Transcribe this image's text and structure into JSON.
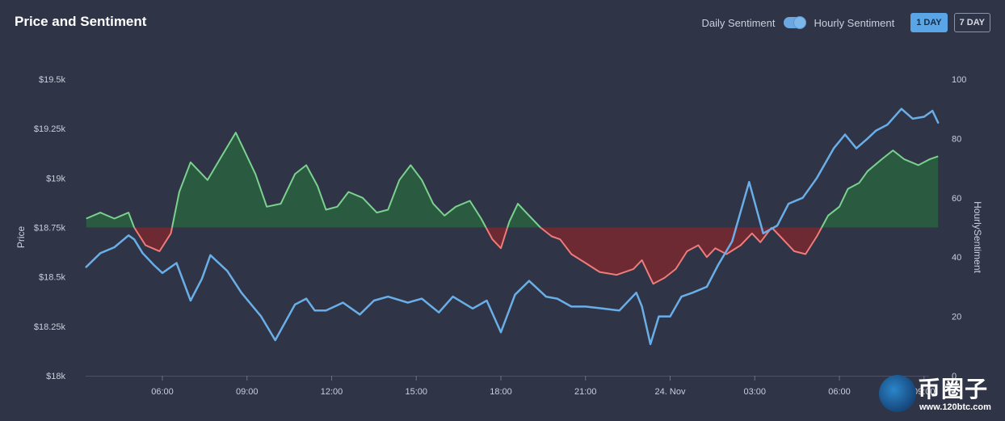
{
  "header": {
    "title": "Price and Sentiment",
    "toggle_left_label": "Daily Sentiment",
    "toggle_right_label": "Hourly Sentiment",
    "toggle_selected": "Hourly Sentiment",
    "range_buttons": [
      {
        "label": "1 DAY",
        "active": true
      },
      {
        "label": "7 DAY",
        "active": false
      }
    ]
  },
  "colors": {
    "background": "#2f3446",
    "price_line": "#6aaee8",
    "sentiment_positive_line": "#7bd28f",
    "sentiment_positive_fill": "#2a5a40",
    "sentiment_negative_line": "#f07b7b",
    "sentiment_negative_fill": "#6e2a33",
    "axis_text": "#c9cfdc"
  },
  "chart_data": {
    "type": "line",
    "title": "Price and Sentiment",
    "x_tick_labels": [
      "06:00",
      "09:00",
      "12:00",
      "15:00",
      "18:00",
      "21:00",
      "24. Nov",
      "03:00",
      "06:00",
      "09:00"
    ],
    "x_range_hours": [
      3.3,
      33.5
    ],
    "y_left": {
      "label": "Price",
      "ticks": [
        "$19.5k",
        "$19.25k",
        "$19k",
        "$18.75k",
        "$18.5k",
        "$18.25k",
        "$18k"
      ],
      "range": [
        18000,
        19500
      ]
    },
    "y_right": {
      "label": "HourlySentiment",
      "ticks": [
        "100",
        "80",
        "60",
        "40",
        "20",
        "0"
      ],
      "range": [
        0,
        100
      ],
      "baseline": 50
    },
    "series": [
      {
        "name": "Price",
        "axis": "left",
        "x": [
          3.3,
          3.8,
          4.3,
          4.8,
          5.0,
          5.3,
          5.7,
          6.0,
          6.5,
          7.0,
          7.4,
          7.7,
          8.3,
          8.8,
          9.5,
          10.0,
          10.7,
          11.1,
          11.4,
          11.8,
          12.4,
          13.0,
          13.5,
          14.0,
          14.7,
          15.2,
          15.8,
          16.3,
          17.0,
          17.5,
          18.0,
          18.5,
          19.0,
          19.6,
          20.0,
          20.5,
          21.0,
          21.6,
          22.2,
          22.8,
          23.0,
          23.3,
          23.6,
          24.0,
          24.4,
          24.8,
          25.3,
          25.7,
          26.2,
          26.8,
          27.3,
          27.8,
          28.2,
          28.7,
          29.2,
          29.8,
          30.2,
          30.6,
          31.0,
          31.3,
          31.7,
          32.2,
          32.6,
          33.0,
          33.3,
          33.5
        ],
        "y": [
          18550,
          18620,
          18650,
          18710,
          18690,
          18620,
          18560,
          18520,
          18570,
          18380,
          18490,
          18610,
          18530,
          18420,
          18300,
          18180,
          18360,
          18390,
          18330,
          18330,
          18370,
          18310,
          18380,
          18400,
          18370,
          18390,
          18320,
          18400,
          18340,
          18380,
          18220,
          18410,
          18480,
          18400,
          18390,
          18350,
          18350,
          18340,
          18330,
          18420,
          18350,
          18160,
          18300,
          18300,
          18400,
          18420,
          18450,
          18560,
          18680,
          18980,
          18720,
          18760,
          18870,
          18900,
          19000,
          19150,
          19220,
          19150,
          19200,
          19240,
          19270,
          19350,
          19300,
          19310,
          19340,
          19280
        ]
      },
      {
        "name": "HourlySentiment",
        "axis": "right",
        "x": [
          3.3,
          3.8,
          4.3,
          4.8,
          5.0,
          5.4,
          5.9,
          6.3,
          6.6,
          7.0,
          7.6,
          8.1,
          8.6,
          8.9,
          9.3,
          9.7,
          10.2,
          10.7,
          11.1,
          11.5,
          11.8,
          12.2,
          12.6,
          13.1,
          13.6,
          14.0,
          14.4,
          14.8,
          15.2,
          15.6,
          16.0,
          16.4,
          16.9,
          17.3,
          17.7,
          18.0,
          18.3,
          18.6,
          19.0,
          19.4,
          19.8,
          20.1,
          20.5,
          21.0,
          21.5,
          22.1,
          22.7,
          23.0,
          23.4,
          23.8,
          24.2,
          24.6,
          25.0,
          25.3,
          25.6,
          26.0,
          26.5,
          26.9,
          27.2,
          27.6,
          28.0,
          28.4,
          28.8,
          29.2,
          29.6,
          30.0,
          30.3,
          30.7,
          31.0,
          31.5,
          31.9,
          32.3,
          32.8,
          33.2,
          33.5
        ],
        "y": [
          53,
          55,
          53,
          55,
          50,
          44,
          42,
          48,
          62,
          72,
          66,
          74,
          82,
          76,
          68,
          57,
          58,
          68,
          71,
          64,
          56,
          57,
          62,
          60,
          55,
          56,
          66,
          71,
          66,
          58,
          54,
          57,
          59,
          53,
          46,
          43,
          52,
          58,
          54,
          50,
          47,
          46,
          41,
          38,
          35,
          34,
          36,
          39,
          31,
          33,
          36,
          42,
          44,
          40,
          43,
          41,
          44,
          48,
          45,
          50,
          46,
          42,
          41,
          47,
          54,
          57,
          63,
          65,
          69,
          73,
          76,
          73,
          71,
          73,
          74
        ]
      }
    ]
  },
  "watermark": {
    "text": "币圈子",
    "subtext": "www.120btc.com"
  }
}
